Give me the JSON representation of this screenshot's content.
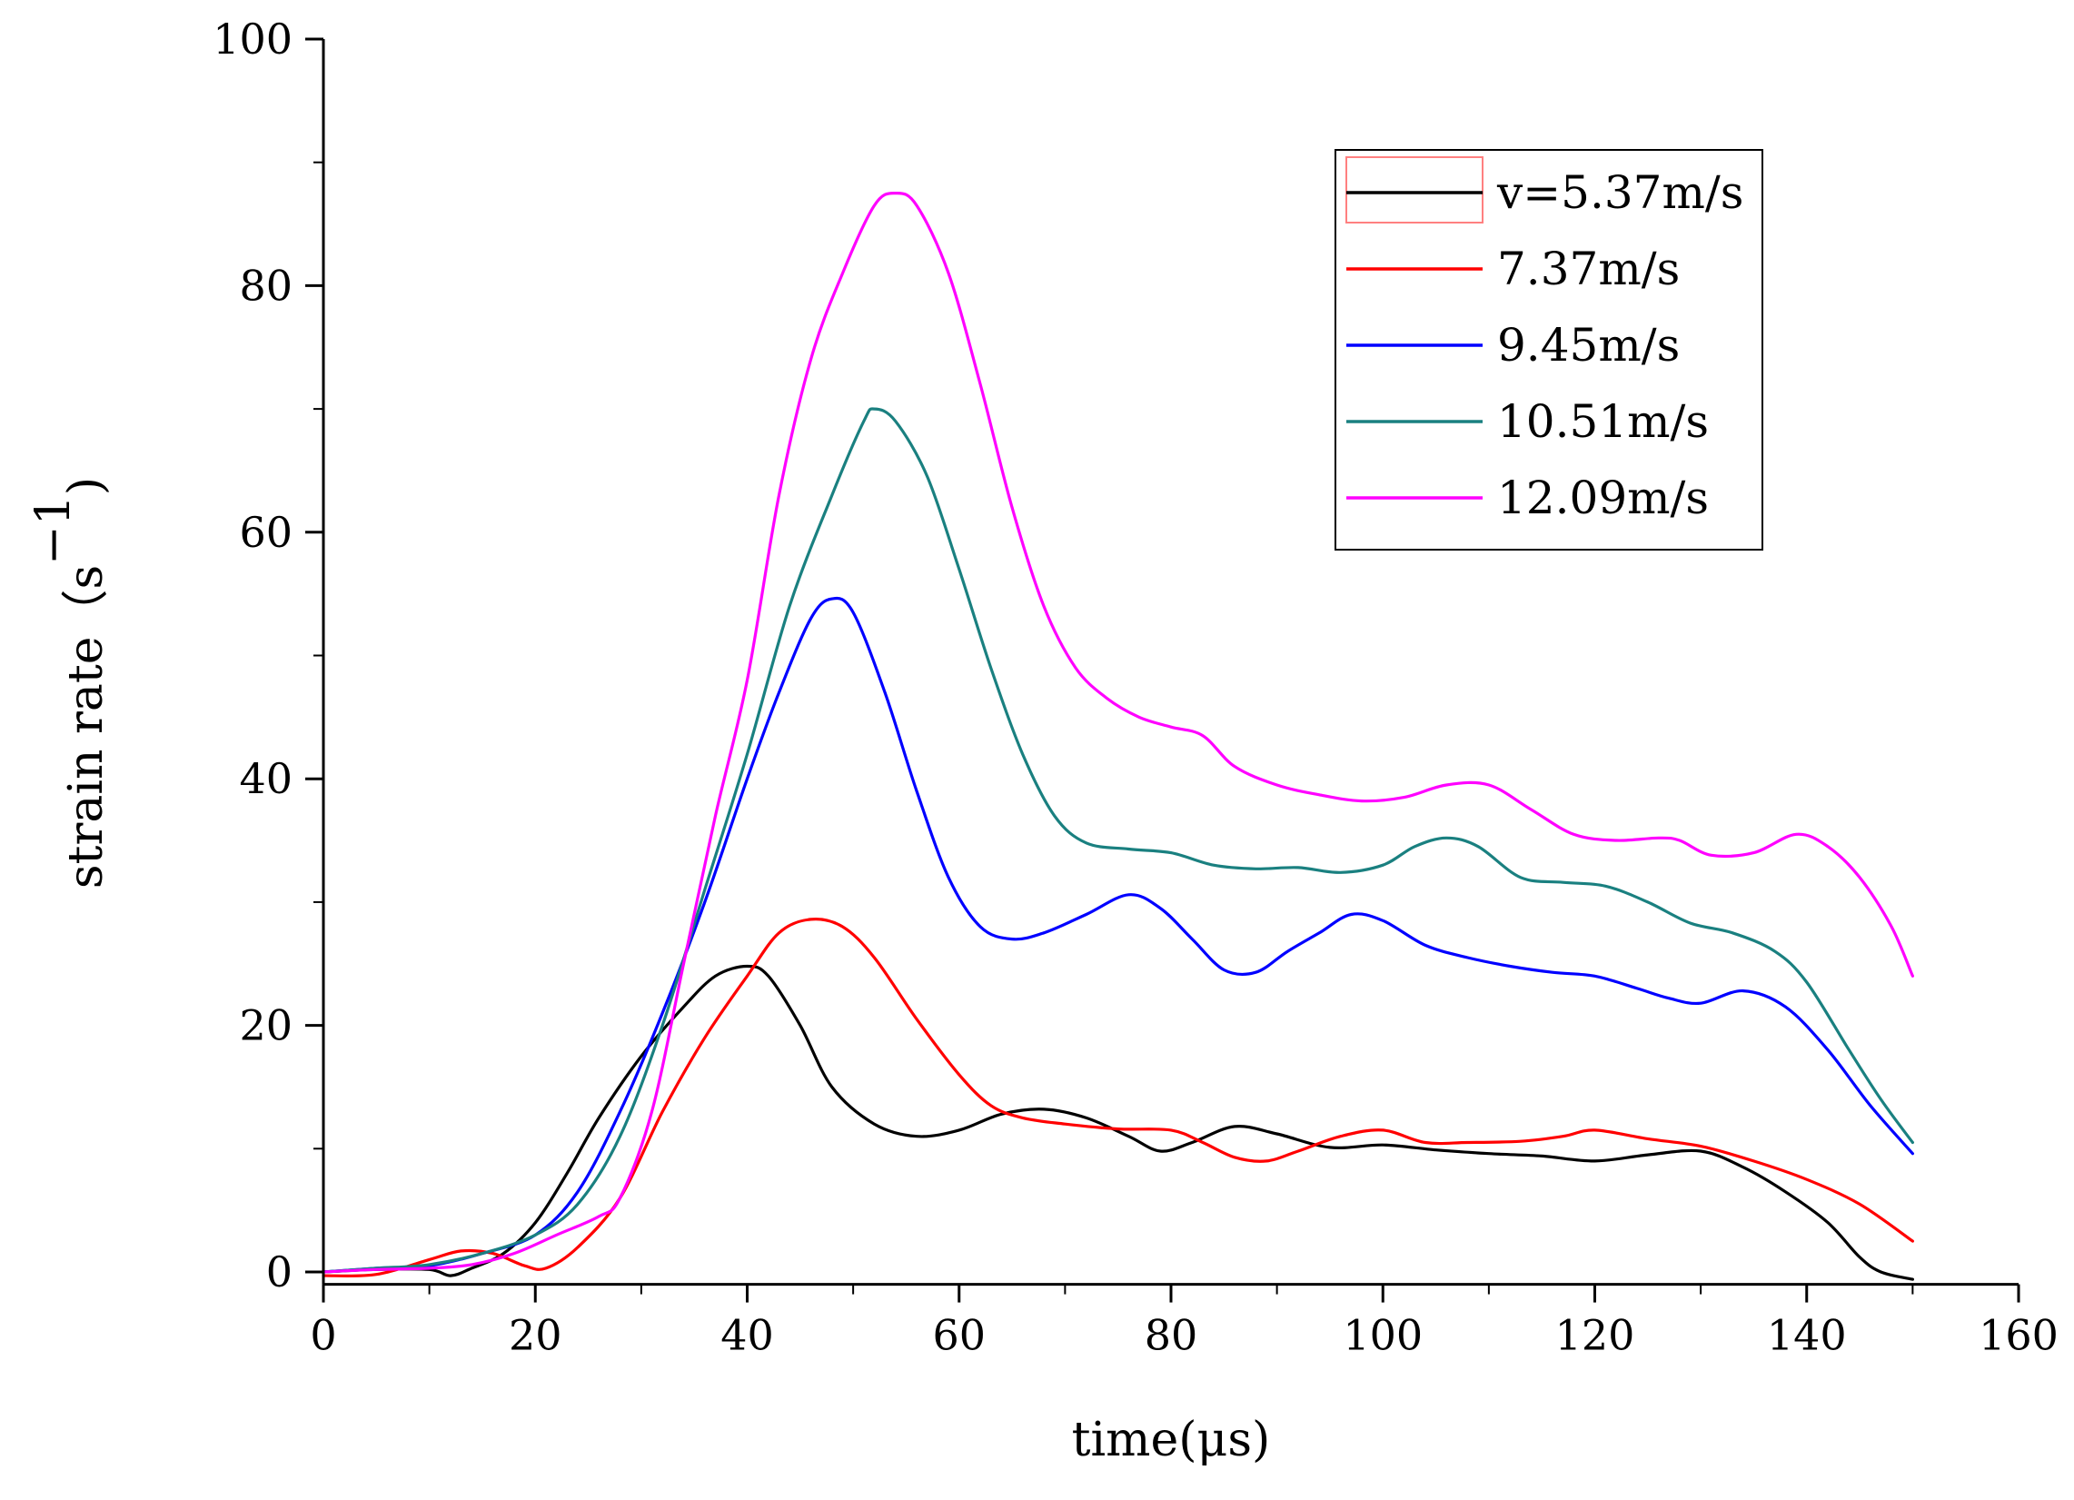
{
  "chart_data": {
    "type": "line",
    "title": "",
    "xlabel": "time(μs)",
    "ylabel": "strain rate（s",
    "ylabel_sup": "−1",
    "ylabel_close": ")",
    "xlim": [
      0,
      160
    ],
    "ylim": [
      -1,
      100
    ],
    "xticks": [
      0,
      20,
      40,
      60,
      80,
      100,
      120,
      140,
      160
    ],
    "yticks": [
      0,
      20,
      40,
      60,
      80,
      100
    ],
    "grid": false,
    "legend_position": "top-right",
    "series": [
      {
        "name": "v=5.37m/s",
        "color": "#000000",
        "points": [
          [
            0,
            0
          ],
          [
            5,
            0.2
          ],
          [
            10,
            0.2
          ],
          [
            12,
            -0.3
          ],
          [
            14,
            0.3
          ],
          [
            17,
            1.5
          ],
          [
            20,
            4
          ],
          [
            23,
            8
          ],
          [
            26,
            12.5
          ],
          [
            30,
            17.5
          ],
          [
            34,
            21.5
          ],
          [
            37,
            24
          ],
          [
            40,
            24.8
          ],
          [
            42,
            24
          ],
          [
            45,
            20
          ],
          [
            48,
            15
          ],
          [
            52,
            12
          ],
          [
            56,
            11
          ],
          [
            60,
            11.5
          ],
          [
            64,
            12.8
          ],
          [
            68,
            13.2
          ],
          [
            72,
            12.5
          ],
          [
            76,
            11
          ],
          [
            79,
            9.8
          ],
          [
            82,
            10.5
          ],
          [
            86,
            11.8
          ],
          [
            90,
            11.2
          ],
          [
            95,
            10.1
          ],
          [
            100,
            10.3
          ],
          [
            105,
            9.9
          ],
          [
            110,
            9.6
          ],
          [
            115,
            9.4
          ],
          [
            120,
            9
          ],
          [
            125,
            9.5
          ],
          [
            130,
            9.8
          ],
          [
            134,
            8.5
          ],
          [
            138,
            6.5
          ],
          [
            142,
            4
          ],
          [
            145,
            1.2
          ],
          [
            147,
            0
          ],
          [
            150,
            -0.6
          ]
        ]
      },
      {
        "name": "7.37m/s",
        "color": "#ff0000",
        "points": [
          [
            0,
            -0.3
          ],
          [
            5,
            -0.2
          ],
          [
            10,
            1
          ],
          [
            13,
            1.7
          ],
          [
            16,
            1.5
          ],
          [
            19,
            0.5
          ],
          [
            21,
            0.3
          ],
          [
            24,
            2
          ],
          [
            28,
            6
          ],
          [
            32,
            13
          ],
          [
            36,
            19
          ],
          [
            40,
            24
          ],
          [
            43,
            27.5
          ],
          [
            46,
            28.6
          ],
          [
            49,
            28
          ],
          [
            52,
            25.5
          ],
          [
            56,
            20.5
          ],
          [
            60,
            16
          ],
          [
            63,
            13.5
          ],
          [
            66,
            12.5
          ],
          [
            70,
            12
          ],
          [
            75,
            11.6
          ],
          [
            80,
            11.5
          ],
          [
            83,
            10.5
          ],
          [
            86,
            9.3
          ],
          [
            89,
            9
          ],
          [
            92,
            9.8
          ],
          [
            96,
            11
          ],
          [
            100,
            11.5
          ],
          [
            104,
            10.5
          ],
          [
            108,
            10.5
          ],
          [
            113,
            10.6
          ],
          [
            117,
            11
          ],
          [
            120,
            11.5
          ],
          [
            125,
            10.8
          ],
          [
            130,
            10.2
          ],
          [
            135,
            9
          ],
          [
            140,
            7.5
          ],
          [
            145,
            5.5
          ],
          [
            150,
            2.5
          ]
        ]
      },
      {
        "name": "9.45m/s",
        "color": "#0000ff",
        "points": [
          [
            0,
            0
          ],
          [
            5,
            0.3
          ],
          [
            10,
            0.5
          ],
          [
            15,
            1.5
          ],
          [
            20,
            3
          ],
          [
            24,
            6.5
          ],
          [
            28,
            13
          ],
          [
            32,
            21
          ],
          [
            36,
            30
          ],
          [
            40,
            40
          ],
          [
            43,
            47
          ],
          [
            46,
            53
          ],
          [
            48,
            54.6
          ],
          [
            50,
            53.5
          ],
          [
            53,
            47
          ],
          [
            56,
            39
          ],
          [
            59,
            32
          ],
          [
            62,
            28
          ],
          [
            65,
            27
          ],
          [
            68,
            27.5
          ],
          [
            72,
            29
          ],
          [
            76,
            30.6
          ],
          [
            79,
            29.5
          ],
          [
            82,
            27
          ],
          [
            85,
            24.5
          ],
          [
            88,
            24.3
          ],
          [
            91,
            26
          ],
          [
            94,
            27.5
          ],
          [
            97,
            29
          ],
          [
            100,
            28.5
          ],
          [
            104,
            26.5
          ],
          [
            108,
            25.5
          ],
          [
            112,
            24.8
          ],
          [
            116,
            24.3
          ],
          [
            120,
            24
          ],
          [
            124,
            23
          ],
          [
            127,
            22.2
          ],
          [
            130,
            21.8
          ],
          [
            134,
            22.8
          ],
          [
            138,
            21.5
          ],
          [
            142,
            18
          ],
          [
            146,
            13.5
          ],
          [
            150,
            9.6
          ]
        ]
      },
      {
        "name": "10.51m/s",
        "color": "#1a8080",
        "points": [
          [
            0,
            0
          ],
          [
            5,
            0.3
          ],
          [
            10,
            0.6
          ],
          [
            15,
            1.5
          ],
          [
            20,
            3
          ],
          [
            24,
            5.5
          ],
          [
            28,
            11
          ],
          [
            32,
            20
          ],
          [
            36,
            31
          ],
          [
            40,
            42
          ],
          [
            44,
            54
          ],
          [
            48,
            63
          ],
          [
            51,
            69
          ],
          [
            52,
            70
          ],
          [
            54,
            69
          ],
          [
            57,
            64.5
          ],
          [
            60,
            57
          ],
          [
            63,
            49
          ],
          [
            66,
            42
          ],
          [
            69,
            37
          ],
          [
            72,
            34.8
          ],
          [
            76,
            34.3
          ],
          [
            80,
            34
          ],
          [
            84,
            33
          ],
          [
            88,
            32.7
          ],
          [
            92,
            32.8
          ],
          [
            96,
            32.4
          ],
          [
            100,
            33
          ],
          [
            103,
            34.5
          ],
          [
            106,
            35.2
          ],
          [
            109,
            34.5
          ],
          [
            113,
            32
          ],
          [
            117,
            31.6
          ],
          [
            121,
            31.3
          ],
          [
            125,
            30
          ],
          [
            129,
            28.3
          ],
          [
            133,
            27.5
          ],
          [
            137,
            26
          ],
          [
            140,
            23.5
          ],
          [
            144,
            18
          ],
          [
            147,
            14
          ],
          [
            150,
            10.5
          ]
        ]
      },
      {
        "name": "12.09m/s",
        "color": "#ff00ff",
        "points": [
          [
            0,
            0
          ],
          [
            5,
            0.2
          ],
          [
            10,
            0.3
          ],
          [
            14,
            0.6
          ],
          [
            18,
            1.5
          ],
          [
            22,
            3
          ],
          [
            26,
            4.5
          ],
          [
            28,
            6
          ],
          [
            31,
            13
          ],
          [
            34,
            25
          ],
          [
            37,
            37
          ],
          [
            40,
            48
          ],
          [
            43,
            63
          ],
          [
            46,
            74
          ],
          [
            49,
            81
          ],
          [
            52,
            86.5
          ],
          [
            54,
            87.5
          ],
          [
            56,
            86.5
          ],
          [
            59,
            81
          ],
          [
            62,
            72
          ],
          [
            65,
            62
          ],
          [
            68,
            54
          ],
          [
            71,
            49
          ],
          [
            74,
            46.5
          ],
          [
            77,
            45
          ],
          [
            80,
            44.2
          ],
          [
            83,
            43.5
          ],
          [
            86,
            41
          ],
          [
            90,
            39.5
          ],
          [
            94,
            38.7
          ],
          [
            98,
            38.2
          ],
          [
            102,
            38.5
          ],
          [
            106,
            39.5
          ],
          [
            110,
            39.5
          ],
          [
            114,
            37.5
          ],
          [
            118,
            35.5
          ],
          [
            122,
            35
          ],
          [
            126,
            35.2
          ],
          [
            128,
            35
          ],
          [
            131,
            33.8
          ],
          [
            135,
            34
          ],
          [
            139,
            35.5
          ],
          [
            142,
            34.5
          ],
          [
            145,
            32
          ],
          [
            148,
            28
          ],
          [
            150,
            24
          ]
        ]
      }
    ]
  }
}
